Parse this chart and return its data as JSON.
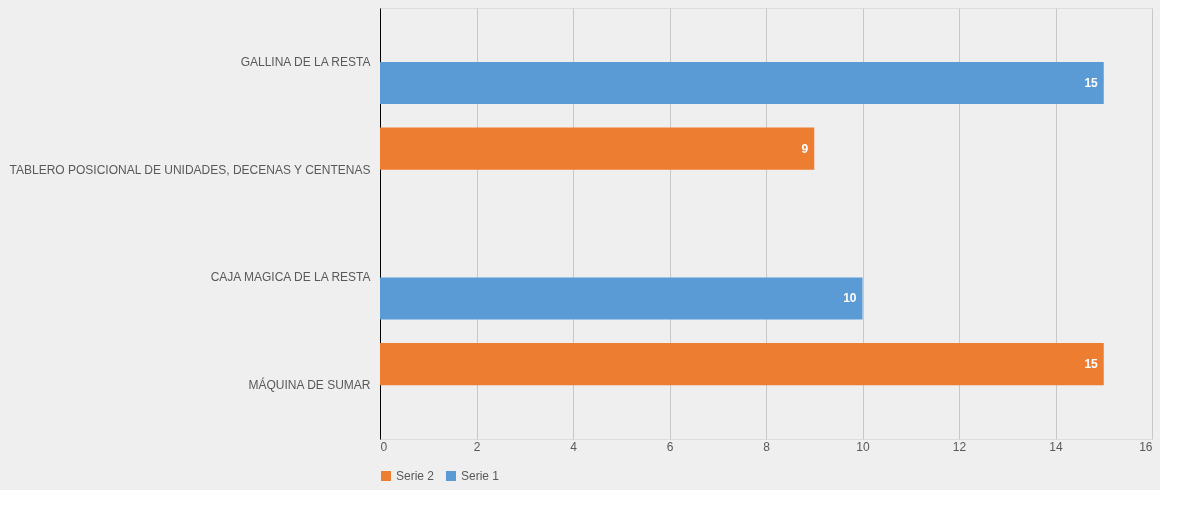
{
  "chart_data": {
    "type": "bar",
    "orientation": "horizontal",
    "categories": [
      "GALLINA DE LA RESTA",
      "TABLERO POSICIONAL DE UNIDADES, DECENAS Y CENTENAS",
      "CAJA MAGICA DE LA RESTA",
      "MÁQUINA DE SUMAR"
    ],
    "series": [
      {
        "name": "Serie 2",
        "color": "#ed7d31",
        "values": [
          null,
          9,
          null,
          15
        ]
      },
      {
        "name": "Serie 1",
        "color": "#5b9bd5",
        "values": [
          15,
          null,
          10,
          null
        ]
      }
    ],
    "xlim": [
      0,
      16
    ],
    "xticks": [
      0,
      2,
      4,
      6,
      8,
      10,
      12,
      14,
      16
    ],
    "grid": "x",
    "legend": "bottom",
    "data_labels": true
  }
}
